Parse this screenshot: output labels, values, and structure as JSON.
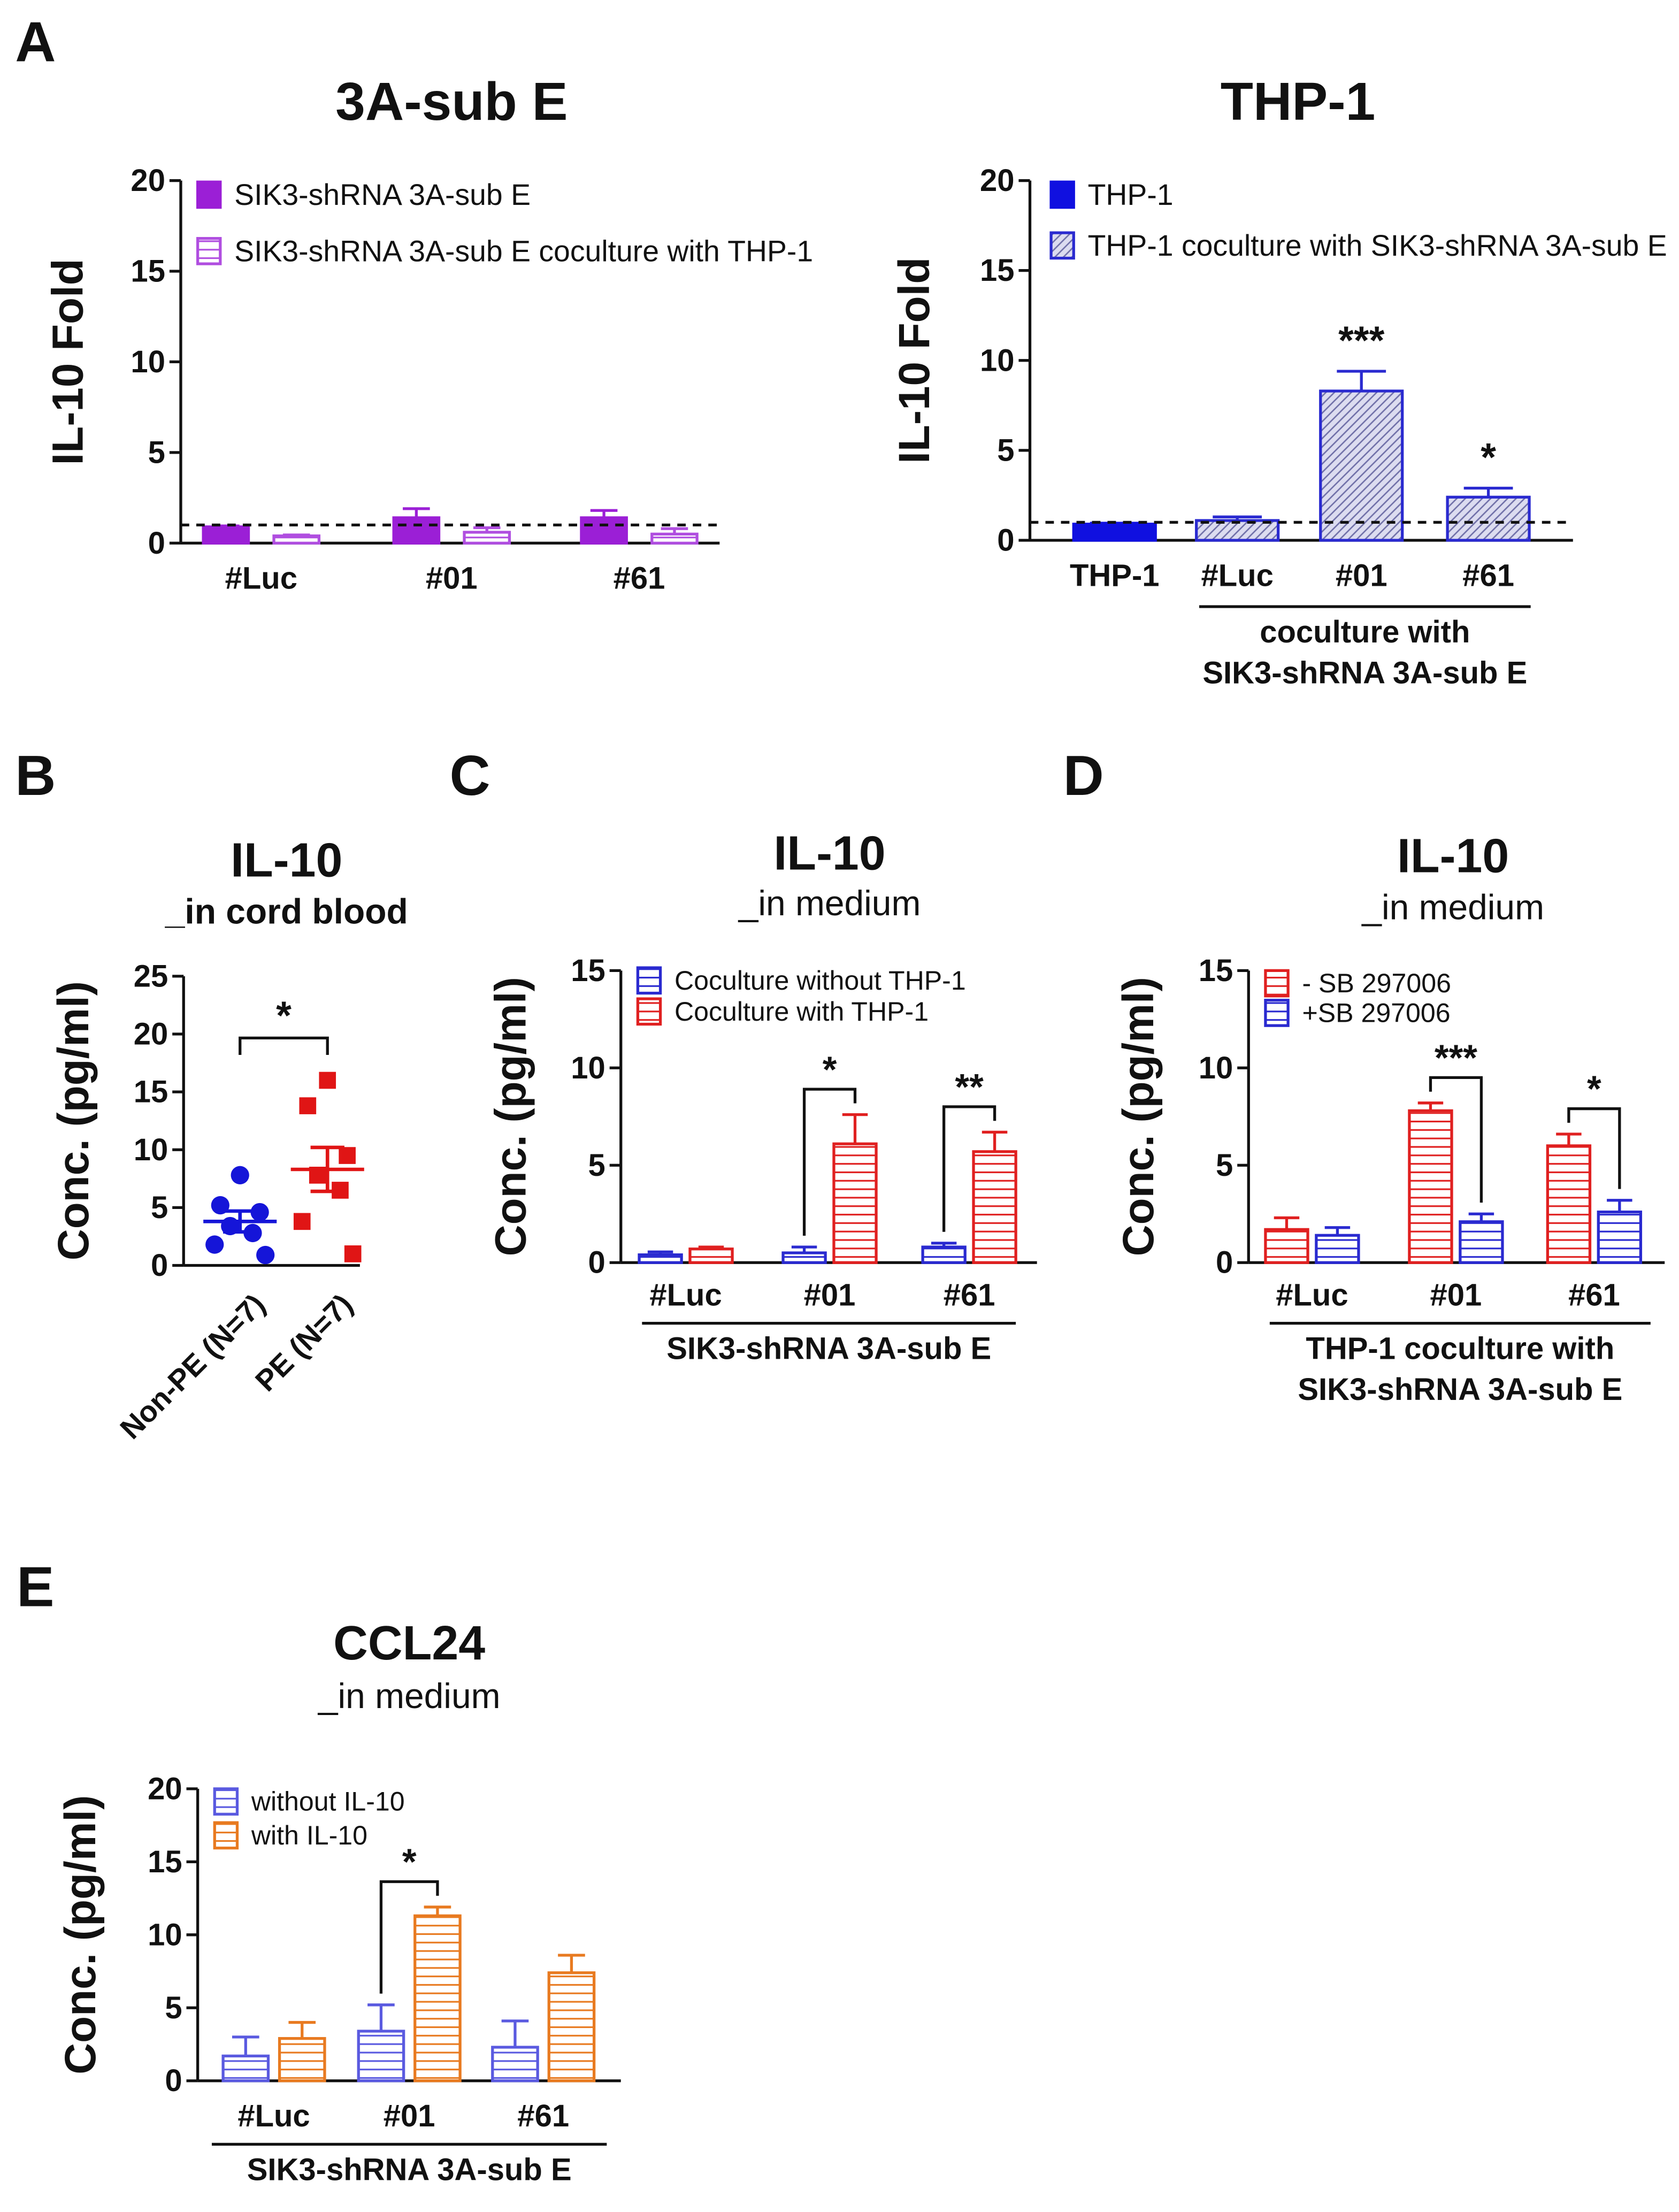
{
  "chart_data": [
    {
      "panel": "A",
      "type": "bar",
      "title": "3A-sub E",
      "y_label": "IL-10 Fold",
      "categories": [
        "#Luc",
        "#01",
        "#61"
      ],
      "series": [
        {
          "name": "SIK3-shRNA 3A-sub E",
          "color": "#9b1fd6",
          "fill": "solid",
          "values": [
            0.9,
            1.4,
            1.4
          ],
          "errors": [
            0.05,
            0.5,
            0.4
          ]
        },
        {
          "name": "SIK3-shRNA 3A-sub E coculture with THP-1",
          "color": "#b04ee0",
          "fill": "hlines",
          "values": [
            0.4,
            0.6,
            0.5
          ],
          "errors": [
            0.05,
            0.25,
            0.3
          ]
        }
      ],
      "ylim": [
        0,
        20
      ],
      "yticks": [
        0,
        5,
        10,
        15,
        20
      ],
      "reference_line": 1
    },
    {
      "type": "bar",
      "title": "THP-1",
      "y_label": "IL-10 Fold",
      "categories": [
        "THP-1",
        "#Luc",
        "#01",
        "#61"
      ],
      "series": [
        {
          "name": "THP-1",
          "color": "#1010e0",
          "fill": "solid",
          "values": [
            0.9,
            null,
            null,
            null
          ],
          "errors": [
            0.05,
            null,
            null,
            null
          ]
        },
        {
          "name": "THP-1 coculture with SIK3-shRNA 3A-sub E",
          "color": "#2a2ad0",
          "fill": "diag",
          "values": [
            null,
            1.1,
            8.3,
            2.4
          ],
          "errors": [
            null,
            0.2,
            1.1,
            0.5
          ]
        }
      ],
      "ylim": [
        0,
        20
      ],
      "yticks": [
        0,
        5,
        10,
        15,
        20
      ],
      "reference_line": 1,
      "annotations": [
        {
          "text": "***",
          "category": 2,
          "bracket": false
        },
        {
          "text": "*",
          "category": 3,
          "bracket": false
        }
      ],
      "group_label": [
        "coculture with",
        "SIK3-shRNA 3A-sub E"
      ],
      "group_span": [
        1,
        3
      ]
    },
    {
      "panel": "B",
      "type": "dot",
      "title": "IL-10",
      "subtitle": "_in cord blood",
      "y_label": "Conc. (pg/ml)",
      "categories": [
        "Non-PE (N=7)",
        "PE (N=7)"
      ],
      "groups": [
        {
          "color": "#1515d8",
          "marker": "circle",
          "values": [
            7.8,
            5.2,
            4.6,
            3.4,
            2.8,
            1.8,
            0.9
          ],
          "mean": 3.8,
          "sem": 0.9
        },
        {
          "color": "#e01515",
          "marker": "square",
          "values": [
            16,
            13.8,
            9.5,
            7.8,
            6.5,
            3.8,
            1
          ],
          "mean": 8.3,
          "sem": 1.9
        }
      ],
      "ylim": [
        0,
        25
      ],
      "yticks": [
        0,
        5,
        10,
        15,
        20,
        25
      ],
      "annotations": [
        {
          "text": "*",
          "bracket": true
        }
      ]
    },
    {
      "panel": "C",
      "type": "bar",
      "title": "IL-10",
      "subtitle": "_in medium",
      "y_label": "Conc. (pg/ml)",
      "categories": [
        "#Luc",
        "#01",
        "#61"
      ],
      "series": [
        {
          "name": "Coculture without THP-1",
          "color": "#2a2ad0",
          "fill": "hlines",
          "values": [
            0.4,
            0.5,
            0.8
          ],
          "errors": [
            0.15,
            0.3,
            0.2
          ]
        },
        {
          "name": "Coculture with THP-1",
          "color": "#e02020",
          "fill": "hlines",
          "values": [
            0.7,
            6.1,
            5.7
          ],
          "errors": [
            0.1,
            1.5,
            1.0
          ]
        }
      ],
      "ylim": [
        0,
        15
      ],
      "yticks": [
        0,
        5,
        10,
        15
      ],
      "annotations": [
        {
          "text": "*",
          "category": 1,
          "bracket": true
        },
        {
          "text": "**",
          "category": 2,
          "bracket": true
        }
      ],
      "group_label": [
        "SIK3-shRNA 3A-sub E"
      ]
    },
    {
      "panel": "D",
      "type": "bar",
      "title": "IL-10",
      "subtitle": "_in medium",
      "y_label": "Conc. (pg/ml)",
      "categories": [
        "#Luc",
        "#01",
        "#61"
      ],
      "series": [
        {
          "name": "- SB 297006",
          "color": "#e02020",
          "fill": "hlines",
          "values": [
            1.7,
            7.8,
            6.0
          ],
          "errors": [
            0.6,
            0.4,
            0.6
          ]
        },
        {
          "name": "+SB 297006",
          "color": "#2a2ad0",
          "fill": "hlines",
          "values": [
            1.4,
            2.1,
            2.6
          ],
          "errors": [
            0.4,
            0.4,
            0.6
          ]
        }
      ],
      "ylim": [
        0,
        15
      ],
      "yticks": [
        0,
        5,
        10,
        15
      ],
      "annotations": [
        {
          "text": "***",
          "category": 1,
          "bracket": true
        },
        {
          "text": "*",
          "category": 2,
          "bracket": true
        }
      ],
      "group_label": [
        "THP-1 coculture with",
        "SIK3-shRNA 3A-sub E"
      ]
    },
    {
      "panel": "E",
      "type": "bar",
      "title": "CCL24",
      "subtitle": "_in medium",
      "y_label": "Conc. (pg/ml)",
      "categories": [
        "#Luc",
        "#01",
        "#61"
      ],
      "series": [
        {
          "name": "without IL-10",
          "color": "#5a5ae0",
          "fill": "hlines",
          "values": [
            1.7,
            3.4,
            2.3
          ],
          "errors": [
            1.3,
            1.8,
            1.8
          ]
        },
        {
          "name": "with IL-10",
          "color": "#e87a20",
          "fill": "hlines",
          "values": [
            2.9,
            11.3,
            7.4
          ],
          "errors": [
            1.1,
            0.6,
            1.2
          ]
        }
      ],
      "ylim": [
        0,
        20
      ],
      "yticks": [
        0,
        5,
        10,
        15,
        20
      ],
      "annotations": [
        {
          "text": "*",
          "category": 1,
          "bracket": true
        }
      ],
      "group_label": [
        "SIK3-shRNA 3A-sub E"
      ]
    }
  ]
}
